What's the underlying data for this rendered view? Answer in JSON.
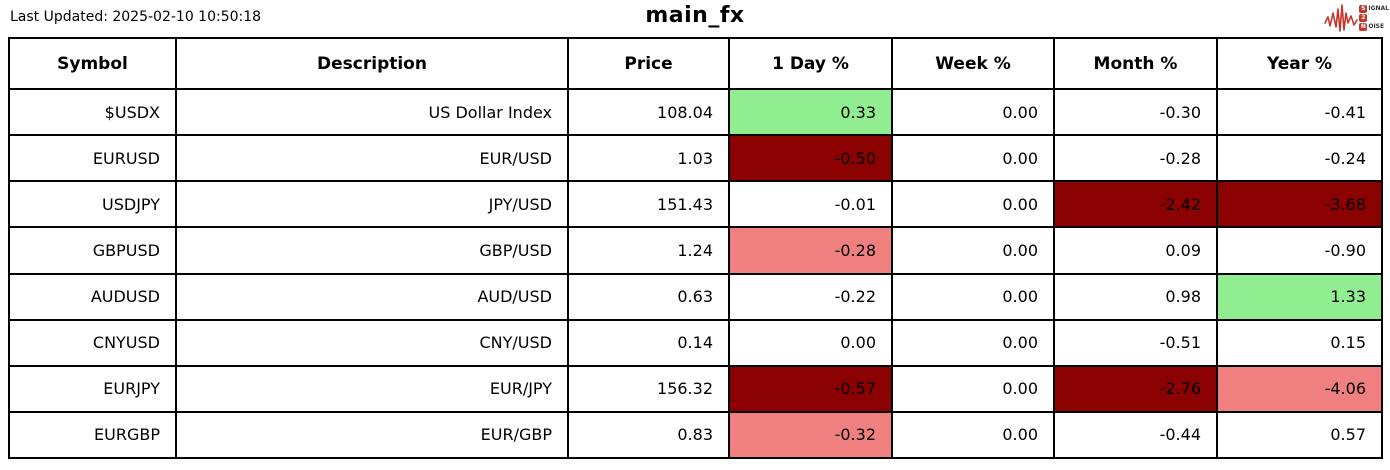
{
  "header": {
    "last_updated": "Last Updated: 2025-02-10 10:50:18",
    "title": "main_fx"
  },
  "logo": {
    "line1_badge": "S",
    "line1_rest": "IGNAL",
    "line2_badge": "2",
    "line3_badge": "N",
    "line3_rest": "OISE"
  },
  "colors": {
    "positive_bg": "#90EE90",
    "negative_strong_bg": "#8B0000",
    "negative_mild_bg": "#F08080",
    "logo_red": "#c0392b",
    "border": "#000000"
  },
  "table": {
    "columns": [
      "Symbol",
      "Description",
      "Price",
      "1 Day %",
      "Week %",
      "Month %",
      "Year %"
    ],
    "rows": [
      {
        "cells": [
          {
            "v": "$USDX"
          },
          {
            "v": "US Dollar Index"
          },
          {
            "v": "108.04"
          },
          {
            "v": "0.33",
            "bg": "positive_bg"
          },
          {
            "v": "0.00"
          },
          {
            "v": "-0.30"
          },
          {
            "v": "-0.41"
          }
        ]
      },
      {
        "cells": [
          {
            "v": "EURUSD"
          },
          {
            "v": "EUR/USD"
          },
          {
            "v": "1.03"
          },
          {
            "v": "-0.50",
            "bg": "negative_strong_bg"
          },
          {
            "v": "0.00"
          },
          {
            "v": "-0.28"
          },
          {
            "v": "-0.24"
          }
        ]
      },
      {
        "cells": [
          {
            "v": "USDJPY"
          },
          {
            "v": "JPY/USD"
          },
          {
            "v": "151.43"
          },
          {
            "v": "-0.01"
          },
          {
            "v": "0.00"
          },
          {
            "v": "-2.42",
            "bg": "negative_strong_bg"
          },
          {
            "v": "-3.68",
            "bg": "negative_strong_bg"
          }
        ]
      },
      {
        "cells": [
          {
            "v": "GBPUSD"
          },
          {
            "v": "GBP/USD"
          },
          {
            "v": "1.24"
          },
          {
            "v": "-0.28",
            "bg": "negative_mild_bg"
          },
          {
            "v": "0.00"
          },
          {
            "v": "0.09"
          },
          {
            "v": "-0.90"
          }
        ]
      },
      {
        "cells": [
          {
            "v": "AUDUSD"
          },
          {
            "v": "AUD/USD"
          },
          {
            "v": "0.63"
          },
          {
            "v": "-0.22"
          },
          {
            "v": "0.00"
          },
          {
            "v": "0.98"
          },
          {
            "v": "1.33",
            "bg": "positive_bg"
          }
        ]
      },
      {
        "cells": [
          {
            "v": "CNYUSD"
          },
          {
            "v": "CNY/USD"
          },
          {
            "v": "0.14"
          },
          {
            "v": "0.00"
          },
          {
            "v": "0.00"
          },
          {
            "v": "-0.51"
          },
          {
            "v": "0.15"
          }
        ]
      },
      {
        "cells": [
          {
            "v": "EURJPY"
          },
          {
            "v": "EUR/JPY"
          },
          {
            "v": "156.32"
          },
          {
            "v": "-0.57",
            "bg": "negative_strong_bg"
          },
          {
            "v": "0.00"
          },
          {
            "v": "-2.76",
            "bg": "negative_strong_bg"
          },
          {
            "v": "-4.06",
            "bg": "negative_mild_bg"
          }
        ]
      },
      {
        "cells": [
          {
            "v": "EURGBP"
          },
          {
            "v": "EUR/GBP"
          },
          {
            "v": "0.83"
          },
          {
            "v": "-0.32",
            "bg": "negative_mild_bg"
          },
          {
            "v": "0.00"
          },
          {
            "v": "-0.44"
          },
          {
            "v": "0.57"
          }
        ]
      }
    ]
  },
  "chart_data": {
    "type": "table",
    "title": "main_fx",
    "columns": [
      "Symbol",
      "Description",
      "Price",
      "1 Day %",
      "Week %",
      "Month %",
      "Year %"
    ],
    "rows": [
      [
        "$USDX",
        "US Dollar Index",
        108.04,
        0.33,
        0.0,
        -0.3,
        -0.41
      ],
      [
        "EURUSD",
        "EUR/USD",
        1.03,
        -0.5,
        0.0,
        -0.28,
        -0.24
      ],
      [
        "USDJPY",
        "JPY/USD",
        151.43,
        -0.01,
        0.0,
        -2.42,
        -3.68
      ],
      [
        "GBPUSD",
        "GBP/USD",
        1.24,
        -0.28,
        0.0,
        0.09,
        -0.9
      ],
      [
        "AUDUSD",
        "AUD/USD",
        0.63,
        -0.22,
        0.0,
        0.98,
        1.33
      ],
      [
        "CNYUSD",
        "CNY/USD",
        0.14,
        0.0,
        0.0,
        -0.51,
        0.15
      ],
      [
        "EURJPY",
        "EUR/JPY",
        156.32,
        -0.57,
        0.0,
        -2.76,
        -4.06
      ],
      [
        "EURGBP",
        "EUR/GBP",
        0.83,
        -0.32,
        0.0,
        -0.44,
        0.57
      ]
    ],
    "highlight_rules": "green = notable gain, dark red = strong loss, light red = mild loss"
  }
}
